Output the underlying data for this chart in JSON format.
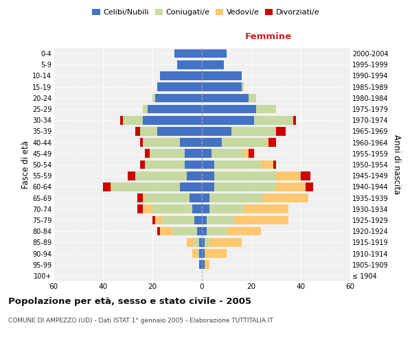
{
  "age_groups": [
    "100+",
    "95-99",
    "90-94",
    "85-89",
    "80-84",
    "75-79",
    "70-74",
    "65-69",
    "60-64",
    "55-59",
    "50-54",
    "45-49",
    "40-44",
    "35-39",
    "30-34",
    "25-29",
    "20-24",
    "15-19",
    "10-14",
    "5-9",
    "0-4"
  ],
  "birth_years": [
    "≤ 1904",
    "1905-1909",
    "1910-1914",
    "1915-1919",
    "1920-1924",
    "1925-1929",
    "1930-1934",
    "1935-1939",
    "1940-1944",
    "1945-1949",
    "1950-1954",
    "1955-1959",
    "1960-1964",
    "1965-1969",
    "1970-1974",
    "1975-1979",
    "1980-1984",
    "1985-1989",
    "1990-1994",
    "1995-1999",
    "2000-2004"
  ],
  "male": {
    "celibi": [
      0,
      1,
      1,
      1,
      2,
      3,
      4,
      5,
      9,
      6,
      7,
      7,
      9,
      18,
      24,
      22,
      19,
      18,
      17,
      10,
      11
    ],
    "coniugati": [
      0,
      0,
      1,
      2,
      10,
      13,
      16,
      18,
      27,
      21,
      16,
      14,
      15,
      7,
      8,
      2,
      1,
      0,
      0,
      0,
      0
    ],
    "vedovi": [
      0,
      0,
      2,
      3,
      5,
      3,
      4,
      1,
      1,
      0,
      0,
      0,
      0,
      0,
      0,
      0,
      0,
      0,
      0,
      0,
      0
    ],
    "divorziati": [
      0,
      0,
      0,
      0,
      1,
      1,
      2,
      2,
      3,
      3,
      2,
      2,
      1,
      2,
      1,
      0,
      0,
      0,
      0,
      0,
      0
    ]
  },
  "female": {
    "nubili": [
      0,
      1,
      1,
      1,
      2,
      2,
      3,
      3,
      5,
      5,
      5,
      4,
      8,
      12,
      21,
      22,
      19,
      16,
      16,
      9,
      10
    ],
    "coniugate": [
      0,
      0,
      0,
      2,
      8,
      11,
      14,
      22,
      25,
      25,
      19,
      13,
      18,
      18,
      16,
      8,
      3,
      1,
      0,
      0,
      0
    ],
    "vedove": [
      0,
      2,
      9,
      13,
      14,
      22,
      18,
      18,
      12,
      10,
      5,
      2,
      1,
      0,
      0,
      0,
      0,
      0,
      0,
      0,
      0
    ],
    "divorziate": [
      0,
      0,
      0,
      0,
      0,
      0,
      0,
      0,
      3,
      4,
      1,
      2,
      3,
      4,
      1,
      0,
      0,
      0,
      0,
      0,
      0
    ]
  },
  "colors": {
    "celibi": "#4472c4",
    "coniugati": "#c5d9a0",
    "vedovi": "#ffc870",
    "divorziati": "#cc0000"
  },
  "xlim": 60,
  "title": "Popolazione per età, sesso e stato civile - 2005",
  "subtitle": "COMUNE DI AMPEZZO (UD) - Dati ISTAT 1° gennaio 2005 - Elaborazione TUTTITALIA.IT",
  "ylabel_left": "Fasce di età",
  "ylabel_right": "Anni di nascita",
  "xlabel_right": "Femmine",
  "background_color": "#f0f0f0",
  "legend_labels": [
    "Celibi/Nubili",
    "Coniugati/e",
    "Vedovi/e",
    "Divorziati/e"
  ]
}
